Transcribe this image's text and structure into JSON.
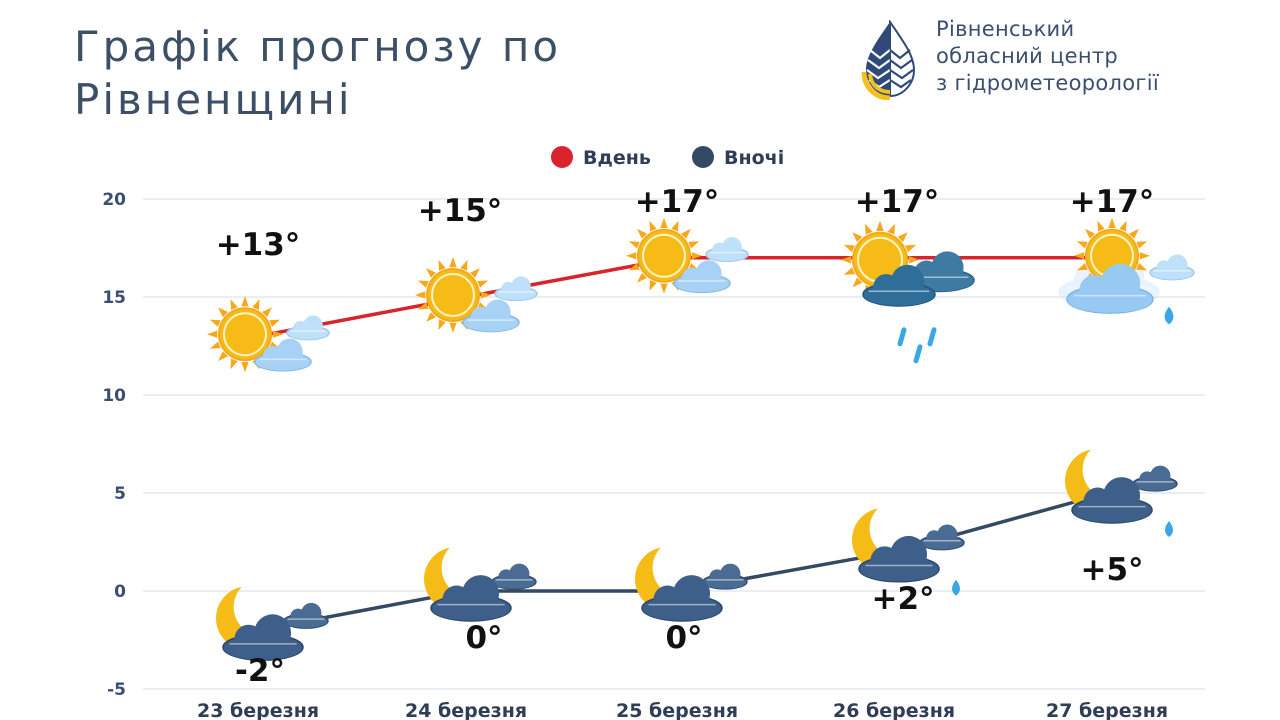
{
  "title": "Графік прогнозу по Рівненщині",
  "organization": {
    "line1": "Рівненський",
    "line2": "обласний центр",
    "line3": "з гідрометеорології"
  },
  "colors": {
    "day": "#d9232d",
    "night": "#344963",
    "grid": "#d5dce6",
    "sun": "#f7bb18",
    "cloud_light": "#9ccaf2",
    "cloud_dark": "#3d5f8a",
    "rain_cloud": "#2f6e99",
    "rain": "#38a6e8"
  },
  "chart_data": {
    "type": "line",
    "title": "",
    "xlabel": "",
    "ylabel": "",
    "categories": [
      "23 березня",
      "24 березня",
      "25 березня",
      "26 березня",
      "27 березня"
    ],
    "ylim": [
      -5,
      20
    ],
    "yticks": [
      -5,
      0,
      5,
      10,
      15,
      20
    ],
    "grid": true,
    "legend_position": "top-center",
    "series": [
      {
        "name": "Вдень",
        "color": "#d9232d",
        "values": [
          13,
          15,
          17,
          17,
          17
        ],
        "labels": [
          "+13°",
          "+15°",
          "+17°",
          "+17°",
          "+17°"
        ],
        "icons": [
          "sun-partly-cloudy-icon",
          "sun-partly-cloudy-icon",
          "sun-partly-cloudy-icon",
          "sun-thunderstorm-rain-icon",
          "sun-cloudy-rain-icon"
        ]
      },
      {
        "name": "Вночі",
        "color": "#344963",
        "values": [
          -2,
          0,
          0,
          2,
          5
        ],
        "labels": [
          "-2°",
          "0°",
          "0°",
          "+2°",
          "+5°"
        ],
        "icons": [
          "moon-cloudy-icon",
          "moon-cloudy-icon",
          "moon-cloudy-icon",
          "moon-cloudy-rain-icon",
          "moon-cloudy-rain-icon"
        ]
      }
    ]
  }
}
